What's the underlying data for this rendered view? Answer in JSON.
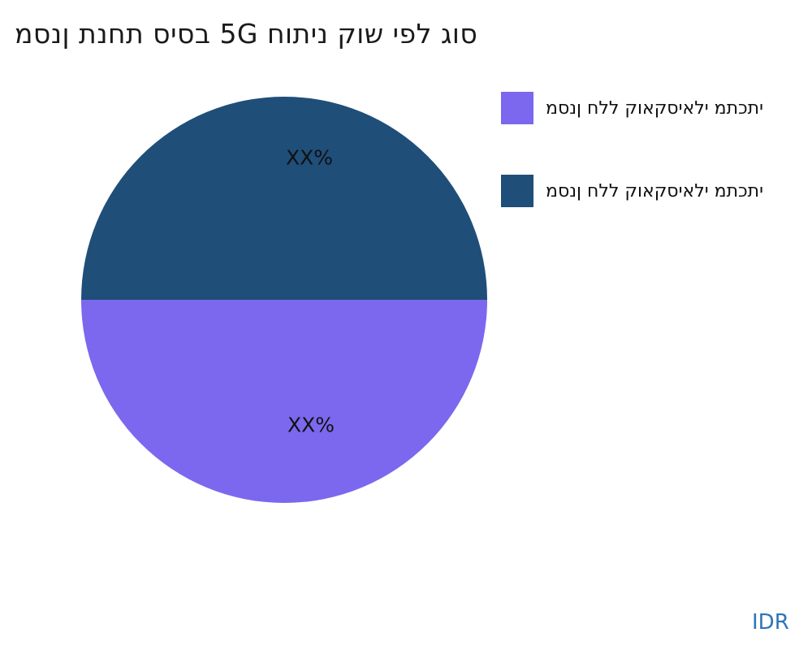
{
  "title": {
    "text": "מסנן תנחת סיסב 5G חותינ קוש יפל גוס"
  },
  "pie": {
    "labels": {
      "top": "XX%",
      "bottom": "XX%"
    },
    "colors": {
      "top_half": "#1F4E79",
      "bottom_half": "#7B68EE"
    }
  },
  "legend": {
    "items": [
      {
        "label": "מסנן חלל קואקסיאלי מתכתי",
        "color": "#7B68EE"
      },
      {
        "label": "מסנן חלל קואקסיאלי מתכתי",
        "color": "#1F4E79"
      }
    ]
  },
  "footer": {
    "currency": "IDR",
    "color": "#2E75B6"
  },
  "chart_data": {
    "type": "pie",
    "title": "מסנן תנחת סיסב 5G חותינ קוש יפל גוס",
    "slices": [
      {
        "legend_label": "מסנן חלל קואקסיאלי מתכתי",
        "data_label": "XX%",
        "value": 50,
        "color": "#7B68EE",
        "position": "bottom-half"
      },
      {
        "legend_label": "מסנן חלל קואקסיאלי מתכתי",
        "data_label": "XX%",
        "value": 50,
        "color": "#1F4E79",
        "position": "top-half"
      }
    ],
    "values_unit": "percent",
    "legend_position": "right",
    "annotation": "IDR"
  }
}
